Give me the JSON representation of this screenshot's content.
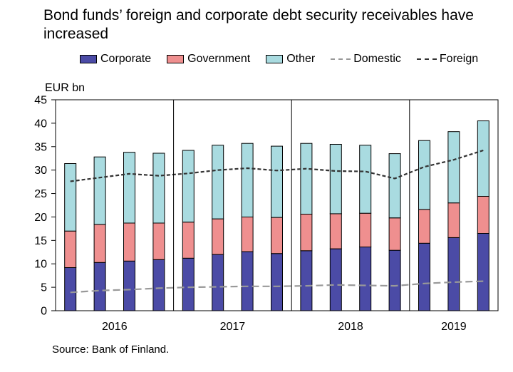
{
  "title": "Bond funds’ foreign and corporate debt security receivables have increased",
  "source": "Source: Bank of Finland.",
  "legend": {
    "corporate": "Corporate",
    "government": "Government",
    "other": "Other",
    "domestic": "Domestic",
    "foreign": "Foreign"
  },
  "colors": {
    "corporate": "#4b4ba6",
    "government": "#ef8f8f",
    "other": "#a9dbe0",
    "domestic": "#999999",
    "foreign": "#333333"
  },
  "chart_data": {
    "type": "bar",
    "stacked": true,
    "ylabel": "EUR bn",
    "ylim": [
      0,
      45
    ],
    "yticks": [
      0,
      5,
      10,
      15,
      20,
      25,
      30,
      35,
      40,
      45
    ],
    "year_labels": [
      "2016",
      "2017",
      "2018",
      "2019"
    ],
    "quarters_per_year": 4,
    "series": [
      {
        "name": "Corporate",
        "values": [
          9.2,
          10.3,
          10.6,
          10.9,
          11.2,
          12.0,
          12.6,
          12.2,
          12.8,
          13.2,
          13.6,
          12.9,
          14.4,
          15.6,
          16.5
        ]
      },
      {
        "name": "Government",
        "values": [
          7.8,
          8.1,
          8.1,
          7.8,
          7.7,
          7.6,
          7.4,
          7.7,
          7.8,
          7.5,
          7.2,
          6.9,
          7.2,
          7.4,
          7.9
        ]
      },
      {
        "name": "Other",
        "values": [
          14.4,
          14.4,
          15.1,
          14.9,
          15.3,
          15.7,
          15.7,
          15.2,
          15.1,
          14.8,
          14.5,
          13.7,
          14.7,
          15.2,
          16.1
        ]
      }
    ],
    "lines": [
      {
        "name": "Domestic",
        "values": [
          3.9,
          4.3,
          4.5,
          4.8,
          5.0,
          5.1,
          5.2,
          5.2,
          5.3,
          5.5,
          5.4,
          5.3,
          5.8,
          6.1,
          6.3
        ]
      },
      {
        "name": "Foreign",
        "values": [
          27.6,
          28.4,
          29.2,
          28.8,
          29.3,
          30.0,
          30.4,
          29.9,
          30.3,
          29.8,
          29.7,
          28.2,
          30.7,
          32.2,
          34.2
        ]
      }
    ],
    "grid": false,
    "legend_position": "top"
  }
}
